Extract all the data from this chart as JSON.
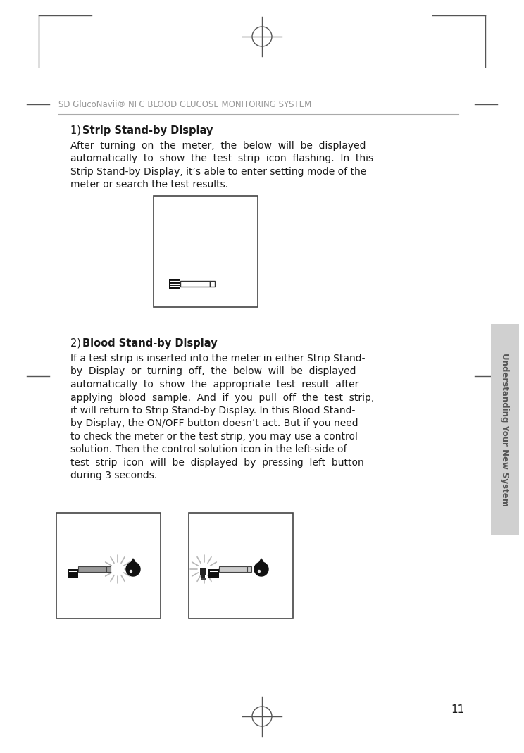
{
  "page_title": "SD GlucoNavii® NFC BLOOD GLUCOSE MONITORING SYSTEM",
  "section1_heading": "1) Strip Stand-by Display",
  "section1_body_lines": [
    "After  turning  on  the  meter,  the  below  will  be  displayed",
    "automatically  to  show  the  test  strip  icon  flashing.  In  this",
    "Strip Stand-by Display, it’s able to enter setting mode of the",
    "meter or search the test results."
  ],
  "section2_heading": "2) Blood Stand-by Display",
  "section2_body_lines": [
    "If a test strip is inserted into the meter in either Strip Stand-",
    "by  Display  or  turning  off,  the  below  will  be  displayed",
    "automatically  to  show  the  appropriate  test  result  after",
    "applying  blood  sample.  And  if  you  pull  off  the  test  strip,",
    "it will return to Strip Stand-by Display. In this Blood Stand-",
    "by Display, the ON/OFF button doesn’t act. But if you need",
    "to check the meter or the test strip, you may use a control",
    "solution. Then the control solution icon in the left-side of",
    "test  strip  icon  will  be  displayed  by  pressing  left  button",
    "during 3 seconds."
  ],
  "side_tab_text": "Understanding Your New System",
  "page_number": "11",
  "bg_color": "#ffffff",
  "title_color": "#999999",
  "body_color": "#1a1a1a",
  "tab_bg_color": "#d0d0d0",
  "tab_text_color": "#555555",
  "mark_color": "#555555",
  "line_color": "#aaaaaa"
}
